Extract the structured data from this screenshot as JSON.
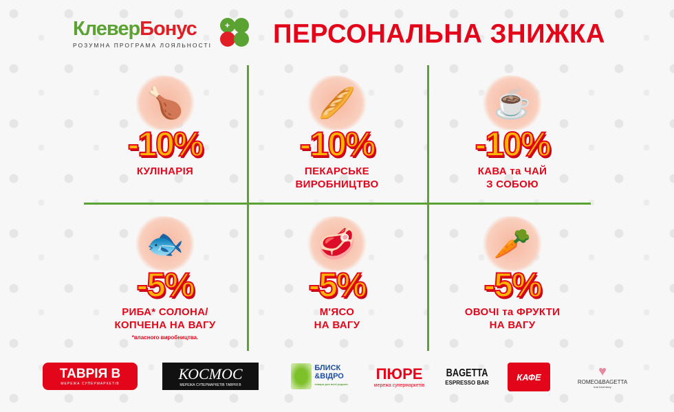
{
  "header": {
    "logo_part1": "Клевер",
    "logo_part2": "Бонус",
    "logo_tagline": "РОЗУМНА ПРОГРАМА ЛОЯЛЬНОСТІ",
    "title": "ПЕРСОНАЛЬНА ЗНИЖКА"
  },
  "colors": {
    "red": "#e3061b",
    "green": "#5aa332",
    "discount_fill": "#ffb400"
  },
  "offers": [
    {
      "icon": "roast-chicken-icon",
      "emoji": "🍗",
      "discount": "-10%",
      "label_lines": [
        "КУЛІНАРІЯ"
      ]
    },
    {
      "icon": "bread-icon",
      "emoji": "🥖",
      "discount": "-10%",
      "label_lines": [
        "ПЕКАРСЬКЕ",
        "ВИРОБНИЦТВО"
      ]
    },
    {
      "icon": "coffee-cup-icon",
      "emoji": "☕",
      "discount": "-10%",
      "label_lines": [
        "КАВА та ЧАЙ",
        "З СОБОЮ"
      ]
    },
    {
      "icon": "salmon-steak-icon",
      "emoji": "🐟",
      "discount": "-5%",
      "label_lines": [
        "РИБА* СОЛОНА/",
        "КОПЧЕНА НА ВАГУ"
      ],
      "note": "*власного виробництва."
    },
    {
      "icon": "meat-steak-icon",
      "emoji": "🥩",
      "discount": "-5%",
      "label_lines": [
        "М'ЯСО",
        "НА ВАГУ"
      ]
    },
    {
      "icon": "vegetables-icon",
      "emoji": "🥕",
      "discount": "-5%",
      "label_lines": [
        "ОВОЧІ та ФРУКТИ",
        "НА ВАГУ"
      ]
    }
  ],
  "brands": {
    "tavria": {
      "name": "ТАВРІЯ В",
      "sub": "МЕРЕЖА СУПЕРМАРКЕТІВ"
    },
    "kosmos": {
      "name": "КОСМОС",
      "sub": "МЕРЕЖА СУПЕРМАРКЕТІВ  ТАВРІЯ В"
    },
    "blysk": {
      "name1": "БЛИСК",
      "name2": "&ВІДРО",
      "sub": "товари для всієї родини"
    },
    "pyure": {
      "name": "ПЮРЕ",
      "sub": "мережа супермаркетів"
    },
    "bagetta": {
      "name": "BAGETTA",
      "sub": "ESPRESSO BAR"
    },
    "kafe": {
      "name": "КАФЕ"
    },
    "romeo": {
      "name": "ROMEO&BAGETTA",
      "sub": "true food story"
    }
  }
}
